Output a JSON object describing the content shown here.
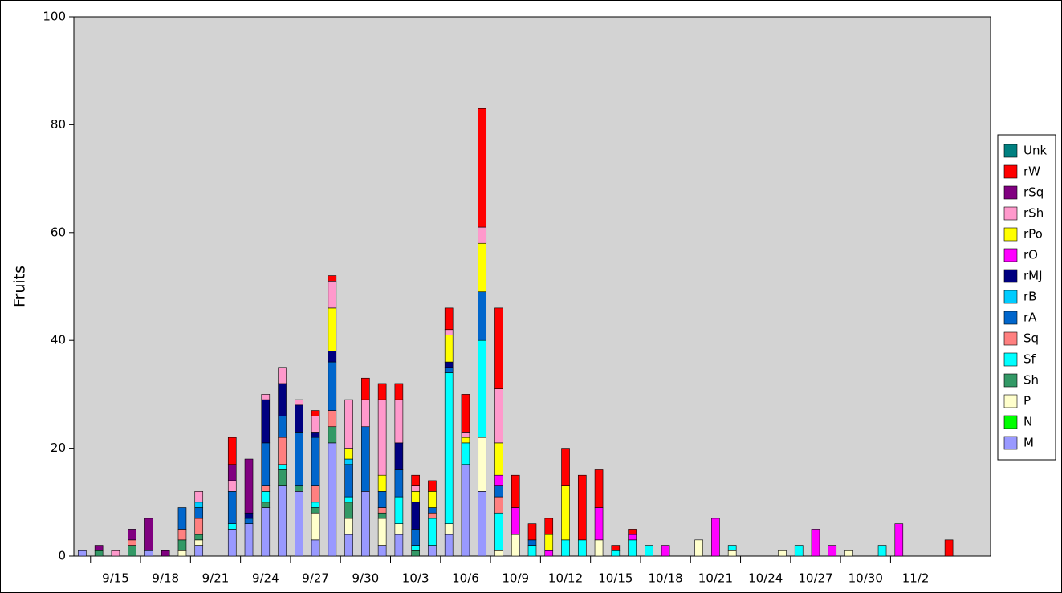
{
  "chart_data": {
    "type": "stacked_bar",
    "y_label": "Fruits",
    "categories": [
      null,
      null,
      "9/15",
      null,
      null,
      "9/18",
      null,
      null,
      "9/21",
      null,
      null,
      "9/24",
      null,
      null,
      "9/27",
      null,
      null,
      "9/30",
      null,
      null,
      "10/3",
      null,
      null,
      "10/6",
      null,
      null,
      "10/9",
      null,
      null,
      "10/12",
      null,
      null,
      "10/15",
      null,
      null,
      "10/18",
      null,
      null,
      "10/21",
      null,
      null,
      "10/24",
      null,
      null,
      "10/27",
      null,
      null,
      "10/30",
      null,
      null,
      "11/2",
      null,
      null,
      null,
      null
    ],
    "ylim": [
      0,
      100
    ],
    "yticks": [
      0,
      20,
      40,
      60,
      80,
      100
    ],
    "grid": false,
    "legend": "right",
    "series": [
      {
        "name": "M",
        "color": "#9999ff",
        "values": [
          1,
          0,
          0,
          0,
          1,
          0,
          0,
          2,
          0,
          5,
          6,
          9,
          13,
          12,
          3,
          21,
          4,
          12,
          2,
          4,
          0,
          2,
          4,
          17,
          12,
          0,
          0,
          0,
          0,
          0,
          0,
          0,
          0,
          0,
          0,
          0,
          0,
          0,
          0,
          0,
          0,
          0,
          0,
          0,
          0,
          0,
          0,
          0,
          0,
          0,
          0,
          0,
          0,
          0,
          0
        ]
      },
      {
        "name": "N",
        "color": "#00ff00",
        "values": [
          0,
          0,
          0,
          0,
          0,
          0,
          0,
          0,
          0,
          0,
          0,
          0,
          0,
          0,
          0,
          0,
          0,
          0,
          0,
          0,
          0,
          0,
          0,
          0,
          0,
          0,
          0,
          0,
          0,
          0,
          0,
          0,
          0,
          0,
          0,
          0,
          0,
          0,
          0,
          0,
          0,
          0,
          0,
          0,
          0,
          0,
          0,
          0,
          0,
          0,
          0,
          0,
          0,
          0,
          0
        ]
      },
      {
        "name": "P",
        "color": "#ffffcc",
        "values": [
          0,
          0,
          0,
          0,
          0,
          0,
          1,
          1,
          0,
          0,
          0,
          0,
          0,
          0,
          5,
          0,
          3,
          0,
          5,
          2,
          0,
          0,
          2,
          0,
          10,
          1,
          4,
          0,
          0,
          0,
          0,
          3,
          0,
          0,
          0,
          0,
          0,
          3,
          0,
          1,
          0,
          0,
          1,
          0,
          0,
          0,
          1,
          0,
          0,
          0,
          0,
          0,
          0,
          0,
          0
        ]
      },
      {
        "name": "Sh",
        "color": "#339966",
        "values": [
          0,
          1,
          0,
          2,
          0,
          0,
          2,
          1,
          0,
          0,
          0,
          1,
          3,
          1,
          1,
          3,
          3,
          0,
          1,
          0,
          1,
          0,
          0,
          0,
          0,
          0,
          0,
          0,
          0,
          0,
          0,
          0,
          0,
          0,
          0,
          0,
          0,
          0,
          0,
          0,
          0,
          0,
          0,
          0,
          0,
          0,
          0,
          0,
          0,
          0,
          0,
          0,
          0,
          0,
          0
        ]
      },
      {
        "name": "Sf",
        "color": "#00ffff",
        "values": [
          0,
          0,
          0,
          0,
          0,
          0,
          0,
          0,
          0,
          1,
          0,
          2,
          1,
          0,
          1,
          0,
          1,
          0,
          0,
          5,
          1,
          5,
          28,
          4,
          18,
          7,
          0,
          2,
          0,
          3,
          3,
          0,
          1,
          3,
          2,
          0,
          0,
          0,
          0,
          1,
          0,
          0,
          0,
          2,
          0,
          0,
          0,
          0,
          2,
          0,
          0,
          0,
          0,
          0,
          0
        ]
      },
      {
        "name": "Sq",
        "color": "#ff8080",
        "values": [
          0,
          0,
          0,
          1,
          0,
          0,
          2,
          3,
          0,
          0,
          0,
          1,
          5,
          0,
          3,
          3,
          0,
          0,
          1,
          0,
          0,
          1,
          0,
          0,
          0,
          3,
          0,
          0,
          0,
          0,
          0,
          0,
          0,
          0,
          0,
          0,
          0,
          0,
          0,
          0,
          0,
          0,
          0,
          0,
          0,
          0,
          0,
          0,
          0,
          0,
          0,
          0,
          0,
          0,
          0
        ]
      },
      {
        "name": "rA",
        "color": "#0066cc",
        "values": [
          0,
          0,
          0,
          0,
          0,
          0,
          4,
          2,
          0,
          6,
          1,
          8,
          4,
          10,
          9,
          9,
          6,
          12,
          3,
          5,
          3,
          1,
          1,
          0,
          9,
          2,
          0,
          1,
          0,
          0,
          0,
          0,
          0,
          0,
          0,
          0,
          0,
          0,
          0,
          0,
          0,
          0,
          0,
          0,
          0,
          0,
          0,
          0,
          0,
          0,
          0,
          0,
          0,
          0,
          0
        ]
      },
      {
        "name": "rB",
        "color": "#00ccff",
        "values": [
          0,
          0,
          0,
          0,
          0,
          0,
          0,
          1,
          0,
          0,
          0,
          0,
          0,
          0,
          0,
          0,
          1,
          0,
          0,
          0,
          0,
          0,
          0,
          0,
          0,
          0,
          0,
          0,
          0,
          0,
          0,
          0,
          0,
          0,
          0,
          0,
          0,
          0,
          0,
          0,
          0,
          0,
          0,
          0,
          0,
          0,
          0,
          0,
          0,
          0,
          0,
          0,
          0,
          0,
          0
        ]
      },
      {
        "name": "rMJ",
        "color": "#000080",
        "values": [
          0,
          0,
          0,
          0,
          0,
          0,
          0,
          0,
          0,
          0,
          1,
          8,
          6,
          5,
          1,
          2,
          0,
          0,
          0,
          5,
          5,
          0,
          1,
          0,
          0,
          0,
          0,
          0,
          0,
          0,
          0,
          0,
          0,
          0,
          0,
          0,
          0,
          0,
          0,
          0,
          0,
          0,
          0,
          0,
          0,
          0,
          0,
          0,
          0,
          0,
          0,
          0,
          0,
          0,
          0
        ]
      },
      {
        "name": "rO",
        "color": "#ff00ff",
        "values": [
          0,
          0,
          0,
          0,
          0,
          0,
          0,
          0,
          0,
          0,
          0,
          0,
          0,
          0,
          0,
          0,
          0,
          0,
          0,
          0,
          0,
          0,
          0,
          0,
          0,
          2,
          5,
          0,
          1,
          0,
          0,
          6,
          0,
          1,
          0,
          2,
          0,
          0,
          7,
          0,
          0,
          0,
          0,
          0,
          5,
          2,
          0,
          0,
          0,
          6,
          0,
          0,
          0,
          0,
          0
        ]
      },
      {
        "name": "rPo",
        "color": "#ffff00",
        "values": [
          0,
          0,
          0,
          0,
          0,
          0,
          0,
          0,
          0,
          0,
          0,
          0,
          0,
          0,
          0,
          8,
          2,
          0,
          3,
          0,
          2,
          3,
          5,
          1,
          9,
          6,
          0,
          0,
          3,
          10,
          0,
          0,
          0,
          0,
          0,
          0,
          0,
          0,
          0,
          0,
          0,
          0,
          0,
          0,
          0,
          0,
          0,
          0,
          0,
          0,
          0,
          0,
          0,
          0,
          0
        ]
      },
      {
        "name": "rSh",
        "color": "#ff99cc",
        "values": [
          0,
          0,
          1,
          0,
          0,
          0,
          0,
          2,
          0,
          2,
          0,
          1,
          3,
          1,
          3,
          5,
          9,
          5,
          14,
          8,
          1,
          0,
          1,
          1,
          3,
          10,
          0,
          0,
          0,
          0,
          0,
          0,
          0,
          0,
          0,
          0,
          0,
          0,
          0,
          0,
          0,
          0,
          0,
          0,
          0,
          0,
          0,
          0,
          0,
          0,
          0,
          0,
          0,
          0,
          0
        ]
      },
      {
        "name": "rSq",
        "color": "#800080",
        "values": [
          0,
          1,
          0,
          2,
          6,
          1,
          0,
          0,
          0,
          3,
          10,
          0,
          0,
          0,
          0,
          0,
          0,
          0,
          0,
          0,
          0,
          0,
          0,
          0,
          0,
          0,
          0,
          0,
          0,
          0,
          0,
          0,
          0,
          0,
          0,
          0,
          0,
          0,
          0,
          0,
          0,
          0,
          0,
          0,
          0,
          0,
          0,
          0,
          0,
          0,
          0,
          0,
          0,
          0,
          0
        ]
      },
      {
        "name": "rW",
        "color": "#ff0000",
        "values": [
          0,
          0,
          0,
          0,
          0,
          0,
          0,
          0,
          0,
          5,
          0,
          0,
          0,
          0,
          1,
          1,
          0,
          4,
          3,
          3,
          2,
          2,
          4,
          7,
          22,
          15,
          6,
          3,
          3,
          7,
          12,
          7,
          1,
          1,
          0,
          0,
          0,
          0,
          0,
          0,
          0,
          0,
          0,
          0,
          0,
          0,
          0,
          0,
          0,
          0,
          0,
          0,
          3,
          0,
          0
        ]
      },
      {
        "name": "Unk",
        "color": "#008080",
        "values": [
          0,
          0,
          0,
          0,
          0,
          0,
          0,
          0,
          0,
          0,
          0,
          0,
          0,
          0,
          0,
          0,
          0,
          0,
          0,
          0,
          0,
          0,
          0,
          0,
          0,
          0,
          0,
          0,
          0,
          0,
          0,
          0,
          0,
          0,
          0,
          0,
          0,
          0,
          0,
          0,
          0,
          0,
          0,
          0,
          0,
          0,
          0,
          0,
          0,
          0,
          0,
          0,
          0,
          0,
          0
        ]
      }
    ]
  }
}
